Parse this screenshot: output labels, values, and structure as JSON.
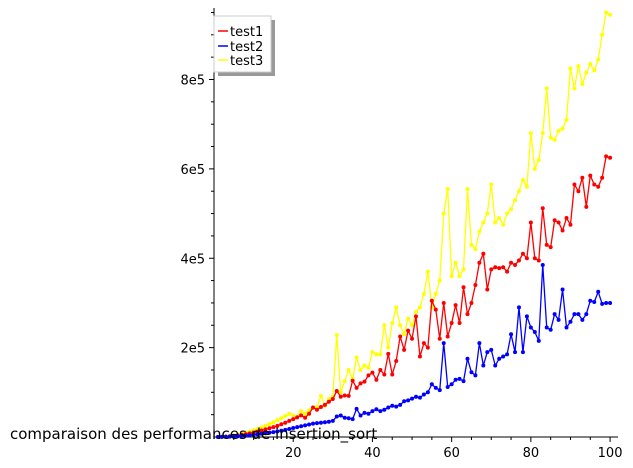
{
  "chart_data": {
    "type": "line",
    "title": "comparaison des performances de insertion_sort",
    "xlabel": "",
    "ylabel": "",
    "xlim": [
      0,
      102
    ],
    "ylim": [
      0,
      960000
    ],
    "xticks": [
      20,
      40,
      60,
      80,
      100
    ],
    "yticks": [
      200000,
      400000,
      600000,
      800000
    ],
    "xtick_labels": [
      "20",
      "40",
      "60",
      "80",
      "100"
    ],
    "ytick_labels": [
      "2e5",
      "4e5",
      "6e5",
      "8e5"
    ],
    "legend_position": "top-left",
    "grid": false,
    "markers": true,
    "series": [
      {
        "name": "test1",
        "color": "#ff0000",
        "x": [
          1,
          2,
          3,
          4,
          5,
          6,
          7,
          8,
          9,
          10,
          11,
          12,
          13,
          14,
          15,
          16,
          17,
          18,
          19,
          20,
          21,
          22,
          23,
          24,
          25,
          26,
          27,
          28,
          29,
          30,
          31,
          32,
          33,
          34,
          35,
          36,
          37,
          38,
          39,
          40,
          41,
          42,
          43,
          44,
          45,
          46,
          47,
          48,
          49,
          50,
          51,
          52,
          53,
          54,
          55,
          56,
          57,
          58,
          59,
          60,
          61,
          62,
          63,
          64,
          65,
          66,
          67,
          68,
          69,
          70,
          71,
          72,
          73,
          74,
          75,
          76,
          77,
          78,
          79,
          80,
          81,
          82,
          83,
          84,
          85,
          86,
          87,
          88,
          89,
          90,
          91,
          92,
          93,
          94,
          95,
          96,
          97,
          98,
          99,
          100
        ],
        "values": [
          100,
          400,
          900,
          1600,
          2500,
          3600,
          4900,
          6400,
          8100,
          10000,
          12000,
          14500,
          17000,
          19500,
          22000,
          25000,
          28500,
          32000,
          36000,
          40000,
          44000,
          48500,
          43000,
          52000,
          66000,
          61000,
          67000,
          72000,
          79000,
          85000,
          103000,
          90000,
          93000,
          92000,
          126000,
          110000,
          120000,
          124000,
          138000,
          144000,
          128000,
          150000,
          140000,
          186000,
          140000,
          170000,
          225000,
          195000,
          238000,
          220000,
          270000,
          180000,
          210000,
          200000,
          305000,
          285000,
          220000,
          300000,
          225000,
          255000,
          295000,
          255000,
          335000,
          275000,
          300000,
          340000,
          390000,
          410000,
          330000,
          375000,
          380000,
          378000,
          380000,
          370000,
          390000,
          385000,
          395000,
          410000,
          400000,
          480000,
          400000,
          395000,
          512000,
          430000,
          425000,
          485000,
          480000,
          462000,
          490000,
          475000,
          565000,
          550000,
          580000,
          515000,
          585000,
          565000,
          560000,
          580000,
          628000,
          625000
        ]
      },
      {
        "name": "test2",
        "color": "#0000ff",
        "x": [
          1,
          2,
          3,
          4,
          5,
          6,
          7,
          8,
          9,
          10,
          11,
          12,
          13,
          14,
          15,
          16,
          17,
          18,
          19,
          20,
          21,
          22,
          23,
          24,
          25,
          26,
          27,
          28,
          29,
          30,
          31,
          32,
          33,
          34,
          35,
          36,
          37,
          38,
          39,
          40,
          41,
          42,
          43,
          44,
          45,
          46,
          47,
          48,
          49,
          50,
          51,
          52,
          53,
          54,
          55,
          56,
          57,
          58,
          59,
          60,
          61,
          62,
          63,
          64,
          65,
          66,
          67,
          68,
          69,
          70,
          71,
          72,
          73,
          74,
          75,
          76,
          77,
          78,
          79,
          80,
          81,
          82,
          83,
          84,
          85,
          86,
          87,
          88,
          89,
          90,
          91,
          92,
          93,
          94,
          95,
          96,
          97,
          98,
          99,
          100
        ],
        "values": [
          50,
          200,
          450,
          800,
          1250,
          1800,
          2450,
          3200,
          4000,
          5000,
          6000,
          7200,
          8500,
          9800,
          11000,
          12500,
          14000,
          16000,
          18000,
          20000,
          22000,
          24000,
          26000,
          28000,
          30000,
          31000,
          32000,
          33000,
          34000,
          36000,
          46000,
          48000,
          43000,
          42000,
          40000,
          63000,
          48000,
          54000,
          52000,
          58000,
          62000,
          58000,
          61000,
          66000,
          70000,
          68000,
          72000,
          80000,
          82000,
          86000,
          90000,
          88000,
          95000,
          100000,
          118000,
          110000,
          105000,
          210000,
          112000,
          118000,
          128000,
          130000,
          125000,
          175000,
          145000,
          138000,
          210000,
          160000,
          190000,
          195000,
          160000,
          175000,
          180000,
          185000,
          230000,
          190000,
          290000,
          190000,
          270000,
          245000,
          235000,
          215000,
          385000,
          245000,
          240000,
          275000,
          262000,
          330000,
          245000,
          258000,
          275000,
          275000,
          262000,
          275000,
          305000,
          302000,
          325000,
          298000,
          300000,
          300000
        ]
      },
      {
        "name": "test3",
        "color": "#ffff00",
        "x": [
          1,
          2,
          3,
          4,
          5,
          6,
          7,
          8,
          9,
          10,
          11,
          12,
          13,
          14,
          15,
          16,
          17,
          18,
          19,
          20,
          21,
          22,
          23,
          24,
          25,
          26,
          27,
          28,
          29,
          30,
          31,
          32,
          33,
          34,
          35,
          36,
          37,
          38,
          39,
          40,
          41,
          42,
          43,
          44,
          45,
          46,
          47,
          48,
          49,
          50,
          51,
          52,
          53,
          54,
          55,
          56,
          57,
          58,
          59,
          60,
          61,
          62,
          63,
          64,
          65,
          66,
          67,
          68,
          69,
          70,
          71,
          72,
          73,
          74,
          75,
          76,
          77,
          78,
          79,
          80,
          81,
          82,
          83,
          84,
          85,
          86,
          87,
          88,
          89,
          90,
          91,
          92,
          93,
          94,
          95,
          96,
          97,
          98,
          99,
          100
        ],
        "values": [
          150,
          600,
          1350,
          2400,
          3750,
          5400,
          7350,
          9600,
          12000,
          15000,
          18000,
          21500,
          25000,
          29000,
          33000,
          37500,
          42000,
          47000,
          52000,
          48000,
          45000,
          58000,
          52000,
          60000,
          65000,
          67000,
          92000,
          70000,
          85000,
          90000,
          228000,
          100000,
          125000,
          150000,
          130000,
          178000,
          150000,
          160000,
          155000,
          190000,
          185000,
          185000,
          250000,
          200000,
          255000,
          290000,
          250000,
          230000,
          265000,
          250000,
          280000,
          290000,
          320000,
          370000,
          290000,
          320000,
          350000,
          500000,
          555000,
          360000,
          390000,
          360000,
          375000,
          555000,
          430000,
          420000,
          460000,
          480000,
          500000,
          565000,
          480000,
          490000,
          475000,
          500000,
          510000,
          530000,
          550000,
          575000,
          560000,
          680000,
          600000,
          620000,
          680000,
          780000,
          670000,
          665000,
          685000,
          690000,
          710000,
          825000,
          780000,
          830000,
          790000,
          815000,
          835000,
          820000,
          845000,
          900000,
          950000,
          945000
        ]
      }
    ]
  }
}
